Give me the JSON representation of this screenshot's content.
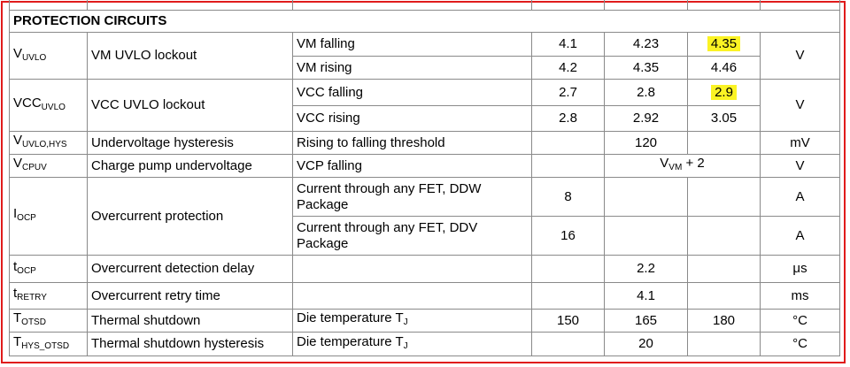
{
  "section_title": "PROTECTION CIRCUITS",
  "highlight_color": "#fbf324",
  "border_color": "#e01b1b",
  "rows": {
    "vuvlo": {
      "sym_main": "V",
      "sym_sub": "UVLO",
      "param": "VM UVLO lockout",
      "unit": "V",
      "c1": {
        "cond": "VM falling",
        "min": "4.1",
        "typ": "4.23",
        "max": "4.35"
      },
      "c2": {
        "cond": "VM rising",
        "min": "4.2",
        "typ": "4.35",
        "max": "4.46"
      }
    },
    "vccuvlo": {
      "sym_main": "VCC",
      "sym_sub": "UVLO",
      "param": "VCC UVLO lockout",
      "unit": "V",
      "c1": {
        "cond": "VCC falling",
        "min": "2.7",
        "typ": "2.8",
        "max": "2.9"
      },
      "c2": {
        "cond": "VCC rising",
        "min": "2.8",
        "typ": "2.92",
        "max": "3.05"
      }
    },
    "hys": {
      "sym_main": "V",
      "sym_sub": "UVLO,HYS",
      "param": "Undervoltage hysteresis",
      "cond": "Rising to falling threshold",
      "typ": "120",
      "unit": "mV"
    },
    "cpuv": {
      "sym_main": "V",
      "sym_sub": "CPUV",
      "param": "Charge pump undervoltage",
      "cond": "VCP falling",
      "typ_main": "V",
      "typ_sub": "VM",
      "typ_tail": " + 2",
      "unit": "V"
    },
    "ocp": {
      "sym_main": "I",
      "sym_sub": "OCP",
      "param": "Overcurrent protection",
      "c1": {
        "cond": "Current through any FET, DDW Package",
        "min": "8",
        "unit": "A"
      },
      "c2": {
        "cond": "Current through any FET, DDV Package",
        "min": "16",
        "unit": "A"
      }
    },
    "tocp": {
      "sym_main": "t",
      "sym_sub": "OCP",
      "param": "Overcurrent detection delay",
      "typ": "2.2",
      "unit": "μs"
    },
    "tretry": {
      "sym_main": "t",
      "sym_sub": "RETRY",
      "param": "Overcurrent retry time",
      "typ": "4.1",
      "unit": "ms"
    },
    "totsd": {
      "sym_main": "T",
      "sym_sub": "OTSD",
      "param": "Thermal shutdown",
      "cond_main": "Die temperature T",
      "cond_sub": "J",
      "min": "150",
      "typ": "165",
      "max": "180",
      "unit": "°C"
    },
    "thys": {
      "sym_main": "T",
      "sym_sub": "HYS_OTSD",
      "param": "Thermal shutdown hysteresis",
      "cond_main": "Die temperature T",
      "cond_sub": "J",
      "typ": "20",
      "unit": "°C"
    }
  }
}
